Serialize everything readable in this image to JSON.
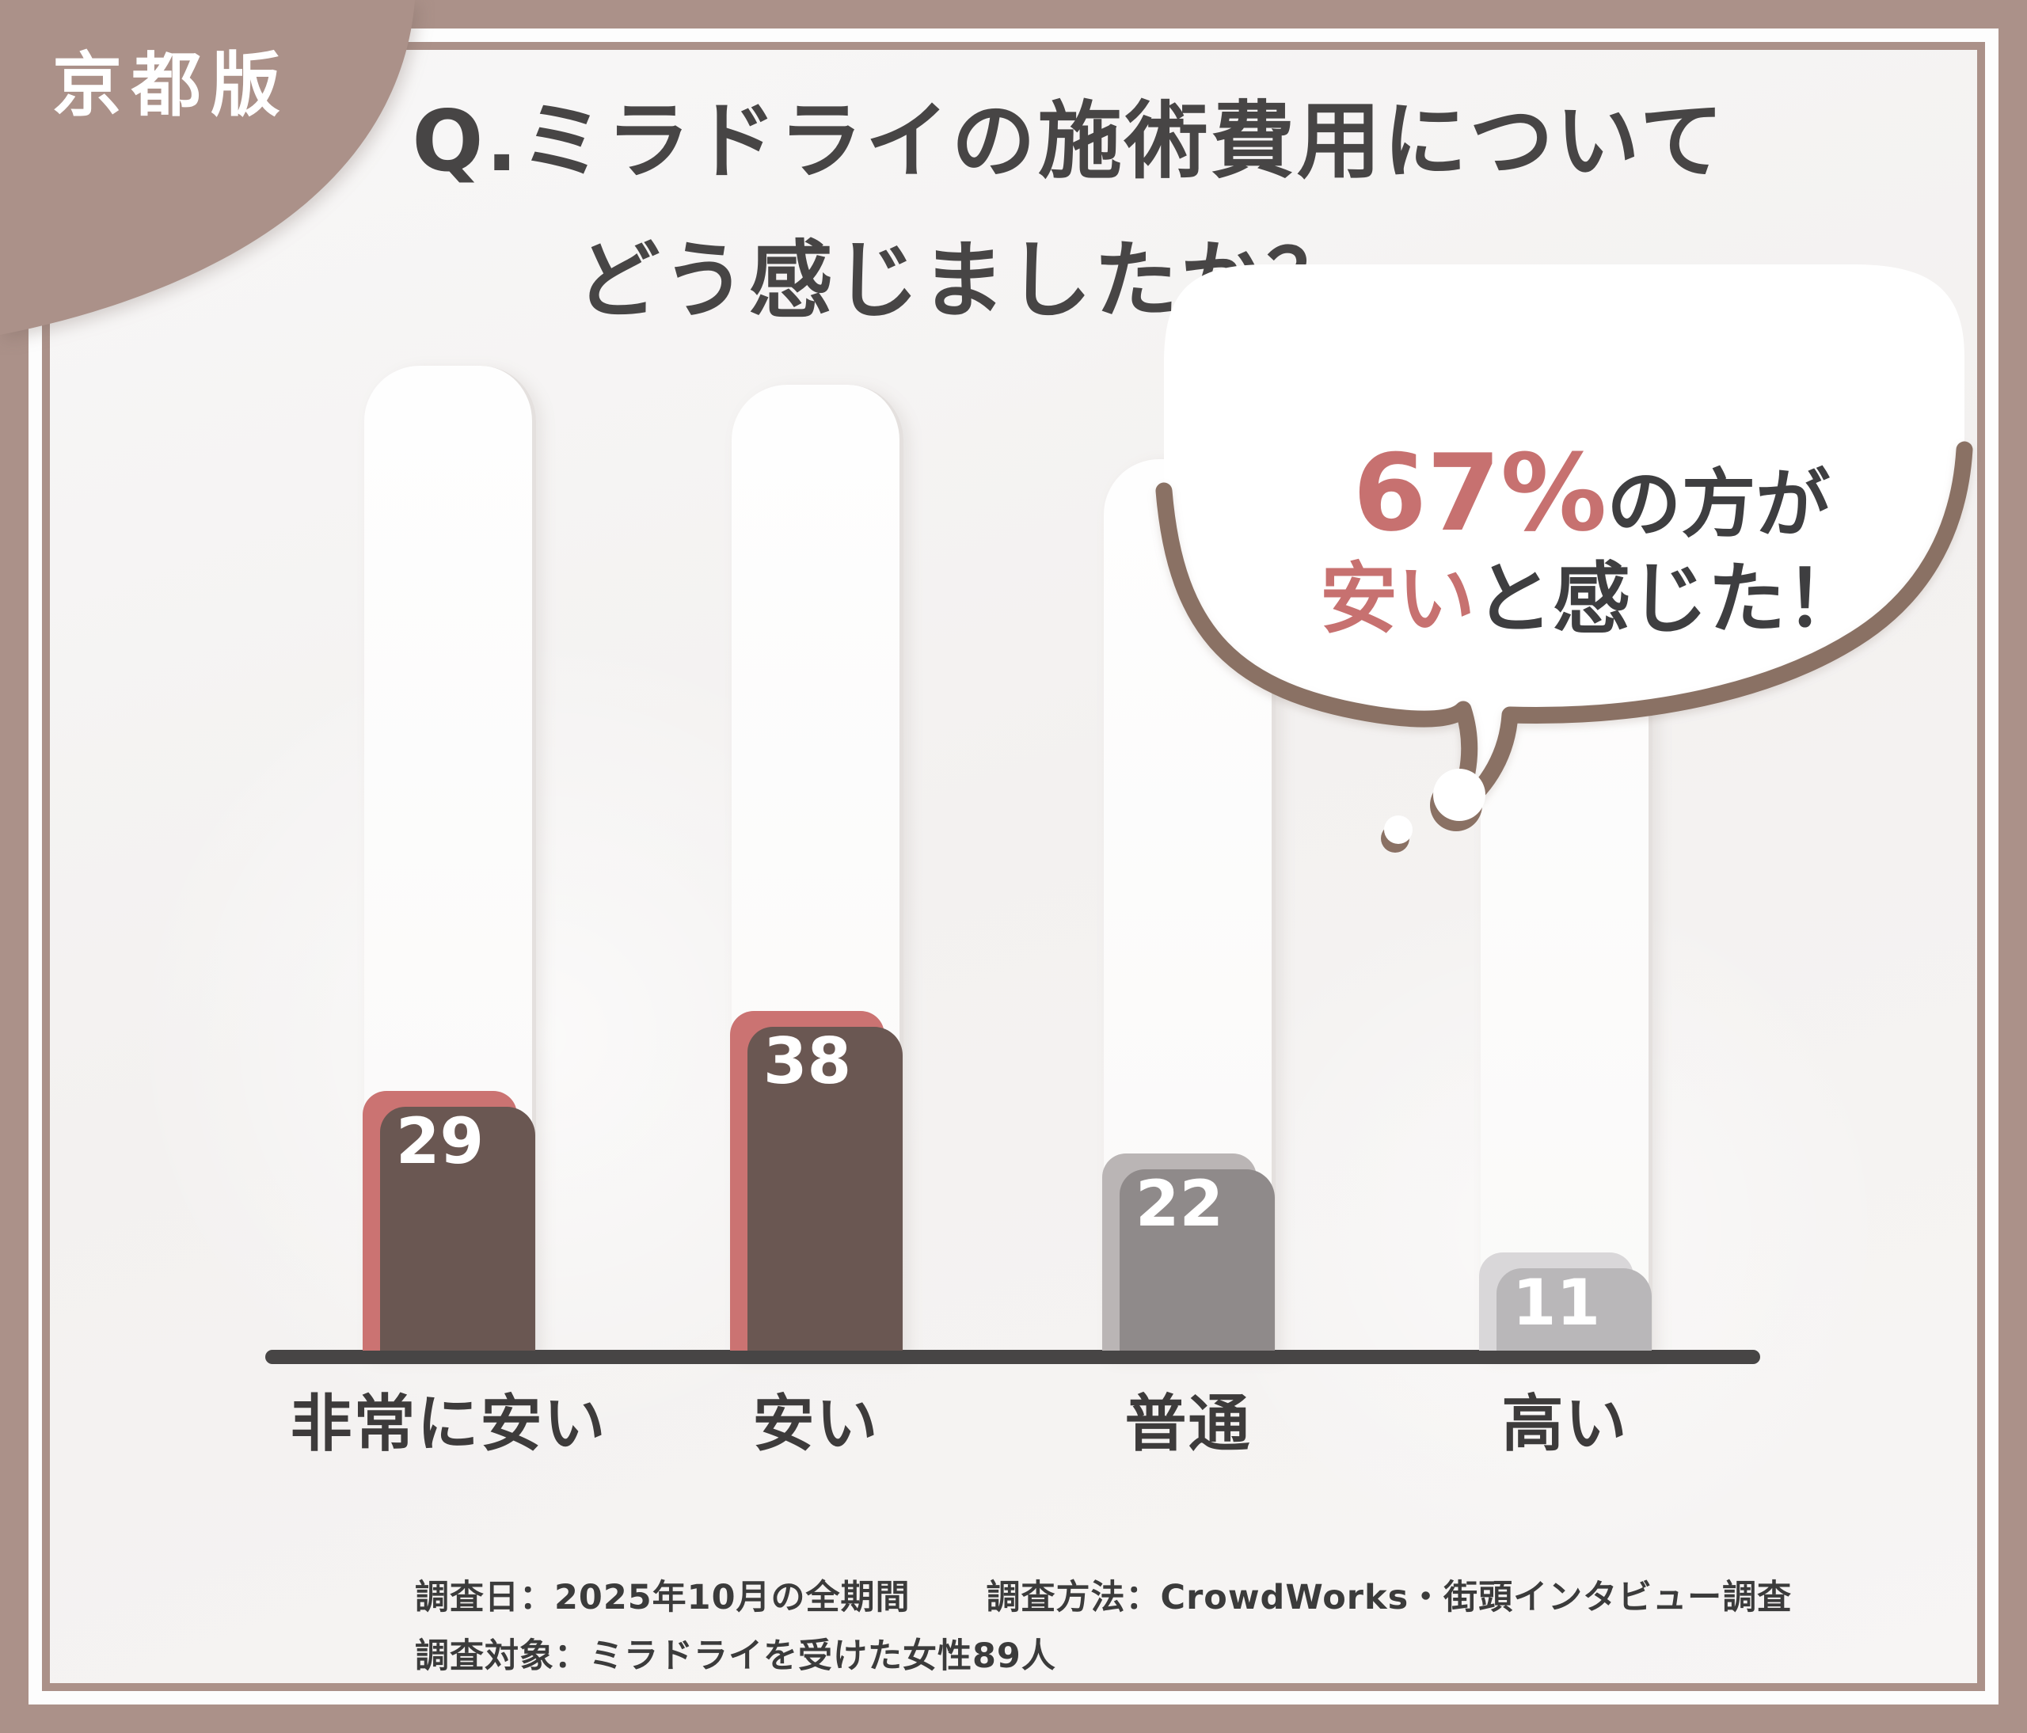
{
  "badge": {
    "label": "京都版"
  },
  "title": {
    "line1": "Q.ミラドライの施術費用について",
    "line2": "どう感じましたか？"
  },
  "bubble": {
    "percent": "67%",
    "percent_suffix": "の方が",
    "highlight": "安い",
    "rest": "と感じた！"
  },
  "chart_data": {
    "type": "bar",
    "title": "Q.ミラドライの施術費用についてどう感じましたか？",
    "categories": [
      "非常に安い",
      "安い",
      "普通",
      "高い"
    ],
    "values": [
      29,
      38,
      22,
      11
    ],
    "xlabel": "",
    "ylabel": "",
    "ylim": [
      0,
      38
    ],
    "grid": false,
    "legend": null,
    "annotation": "67%の方が安いと感じた！",
    "bar_colors": [
      "#cb7372",
      "#cb7372",
      "#bab5b5",
      "#d9d7d9"
    ],
    "bar_shadow_colors": [
      "#6a5752",
      "#6a5752",
      "#8f8a8a",
      "#b9b7b9"
    ]
  },
  "footer": {
    "survey_date": "調査日：2025年10月の全期間",
    "survey_method": "調査方法：CrowdWorks・街頭インタビュー調査",
    "survey_subject": "調査対象：ミラドライを受けた女性89人"
  },
  "colors": {
    "frame_mauve": "#ab9189",
    "bubble_outline": "#8a7164",
    "accent_rose": "#c77170",
    "bar_rose": "#cb7372",
    "bar_gray": "#bab5b5",
    "bar_light_gray": "#d9d7d9",
    "axis_dark": "#474545"
  }
}
